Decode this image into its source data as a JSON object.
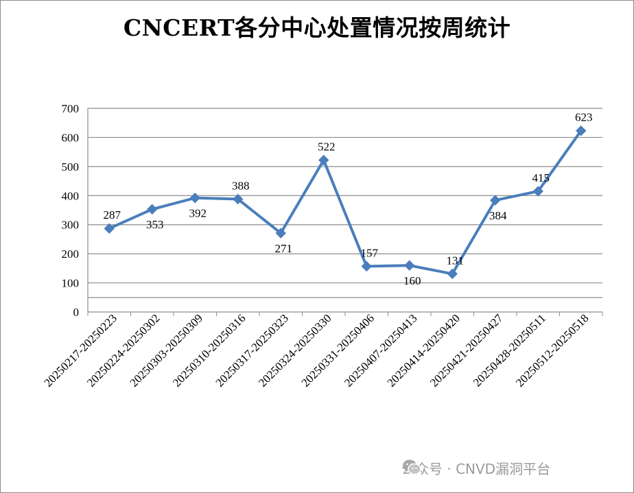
{
  "chart_data": {
    "type": "line",
    "title": "CNCERT各分中心处置情况按周统计",
    "xlabel": "",
    "ylabel": "",
    "ylim": [
      0,
      700
    ],
    "yticks": [
      0,
      100,
      200,
      300,
      400,
      500,
      600,
      700
    ],
    "grid": true,
    "color": "#4a7ebb",
    "marker": "diamond",
    "categories": [
      "20250217-20250223",
      "20250224-20250302",
      "20250303-20250309",
      "20250310-20250316",
      "20250317-20250323",
      "20250324-20250330",
      "20250331-20250406",
      "20250407-20250413",
      "20250414-20250420",
      "20250421-20250427",
      "20250428-20250511",
      "20250512-20250518"
    ],
    "values": [
      287,
      353,
      392,
      388,
      271,
      522,
      157,
      160,
      131,
      384,
      415,
      623
    ]
  },
  "watermark": {
    "text": "公众号 · CNVD漏洞平台",
    "icon": "wechat-icon"
  }
}
